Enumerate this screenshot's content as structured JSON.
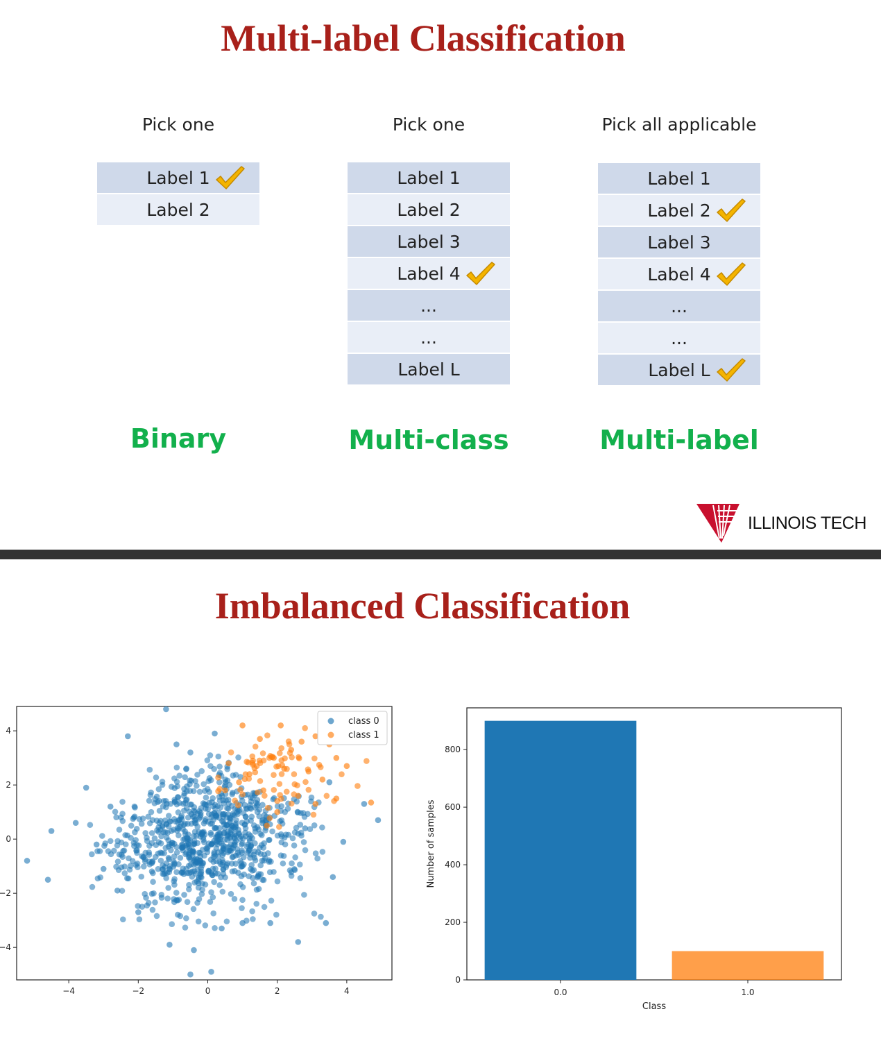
{
  "slide1": {
    "title": "Multi-label Classification",
    "columns": [
      {
        "heading": "Pick one",
        "type_label": "Binary",
        "rows": [
          {
            "label": "Label 1",
            "checked": true
          },
          {
            "label": "Label 2",
            "checked": false
          }
        ]
      },
      {
        "heading": "Pick one",
        "type_label": "Multi-class",
        "rows": [
          {
            "label": "Label 1",
            "checked": false
          },
          {
            "label": "Label 2",
            "checked": false
          },
          {
            "label": "Label 3",
            "checked": false
          },
          {
            "label": "Label 4",
            "checked": true
          },
          {
            "label": "...",
            "checked": false
          },
          {
            "label": "...",
            "checked": false
          },
          {
            "label": "Label L",
            "checked": false
          }
        ]
      },
      {
        "heading": "Pick all applicable",
        "type_label": "Multi-label",
        "rows": [
          {
            "label": "Label 1",
            "checked": false
          },
          {
            "label": "Label 2",
            "checked": true
          },
          {
            "label": "Label 3",
            "checked": false
          },
          {
            "label": "Label 4",
            "checked": true
          },
          {
            "label": "...",
            "checked": false
          },
          {
            "label": "...",
            "checked": false
          },
          {
            "label": "Label L",
            "checked": true
          }
        ]
      }
    ],
    "logo_text": "ILLINOIS TECH",
    "colors": {
      "title": "#a8201a",
      "type_label": "#12b04c",
      "row_dark": "#cfd9ea",
      "row_light": "#e9eef7",
      "check": "#f4b400"
    }
  },
  "slide2": {
    "title": "Imbalanced Classification"
  },
  "chart_data": [
    {
      "type": "scatter",
      "title": "",
      "xlabel": "",
      "ylabel": "",
      "xlim": [
        -5.5,
        5.3
      ],
      "ylim": [
        -5.2,
        4.9
      ],
      "xticks": [
        "−4",
        "−2",
        "0",
        "2",
        "4"
      ],
      "xtick_values": [
        -4,
        -2,
        0,
        2,
        4
      ],
      "yticks": [
        "4",
        "2",
        "0",
        "−2",
        "−4"
      ],
      "ytick_values": [
        4,
        2,
        0,
        -2,
        -4
      ],
      "legend_position": "top-right",
      "series": [
        {
          "name": "class 0",
          "color": "#1f77b4",
          "count": 900,
          "points": [
            [
              -5.2,
              -0.8
            ],
            [
              -4.5,
              0.3
            ],
            [
              -4.6,
              -1.5
            ],
            [
              -3.5,
              1.9
            ],
            [
              -3.2,
              -0.2
            ],
            [
              -3.0,
              -1.1
            ],
            [
              -2.3,
              3.8
            ],
            [
              -1.2,
              4.8
            ],
            [
              -0.9,
              3.5
            ],
            [
              -0.5,
              3.2
            ],
            [
              0.2,
              3.9
            ],
            [
              0.4,
              -3.3
            ],
            [
              -0.5,
              -5.0
            ],
            [
              0.1,
              -4.9
            ],
            [
              -0.4,
              -4.1
            ],
            [
              -1.1,
              -3.9
            ],
            [
              1.0,
              -3.1
            ],
            [
              1.8,
              -3.1
            ],
            [
              2.6,
              -3.8
            ],
            [
              3.4,
              -3.1
            ],
            [
              3.5,
              2.1
            ],
            [
              4.5,
              1.3
            ],
            [
              4.9,
              0.7
            ],
            [
              3.9,
              -0.1
            ],
            [
              3.6,
              -1.4
            ],
            [
              -3.8,
              0.6
            ],
            [
              -2.8,
              1.2
            ],
            [
              -2.6,
              -1.9
            ],
            [
              -2.0,
              -2.7
            ],
            [
              2.8,
              0.4
            ]
          ]
        },
        {
          "name": "class 1",
          "color": "#ff7f0e",
          "count": 100,
          "points": [
            [
              1.0,
              4.2
            ],
            [
              1.5,
              3.7
            ],
            [
              2.1,
              4.2
            ],
            [
              2.7,
              3.6
            ],
            [
              3.1,
              3.8
            ],
            [
              3.7,
              3.0
            ],
            [
              4.0,
              2.7
            ],
            [
              3.5,
              3.5
            ],
            [
              2.4,
              3.3
            ],
            [
              1.9,
              3.0
            ],
            [
              1.3,
              2.9
            ],
            [
              0.6,
              2.8
            ],
            [
              0.9,
              2.1
            ],
            [
              1.6,
              1.8
            ],
            [
              2.2,
              2.6
            ],
            [
              2.9,
              2.5
            ],
            [
              3.3,
              2.2
            ],
            [
              3.7,
              1.5
            ],
            [
              3.1,
              1.3
            ],
            [
              2.6,
              1.6
            ],
            [
              4.7,
              1.35
            ],
            [
              1.2,
              2.4
            ],
            [
              0.5,
              1.8
            ],
            [
              2.0,
              1.0
            ],
            [
              1.7,
              0.5
            ]
          ]
        }
      ]
    },
    {
      "type": "bar",
      "title": "",
      "categories": [
        "0.0",
        "1.0"
      ],
      "values": [
        900,
        100
      ],
      "colors": [
        "#1f77b4",
        "#ff7f0e"
      ],
      "xlabel": "Class",
      "ylabel": "Number of samples",
      "ylim": [
        0,
        945
      ],
      "yticks": [
        "0",
        "200",
        "400",
        "600",
        "800"
      ],
      "ytick_values": [
        0,
        200,
        400,
        600,
        800
      ]
    }
  ]
}
